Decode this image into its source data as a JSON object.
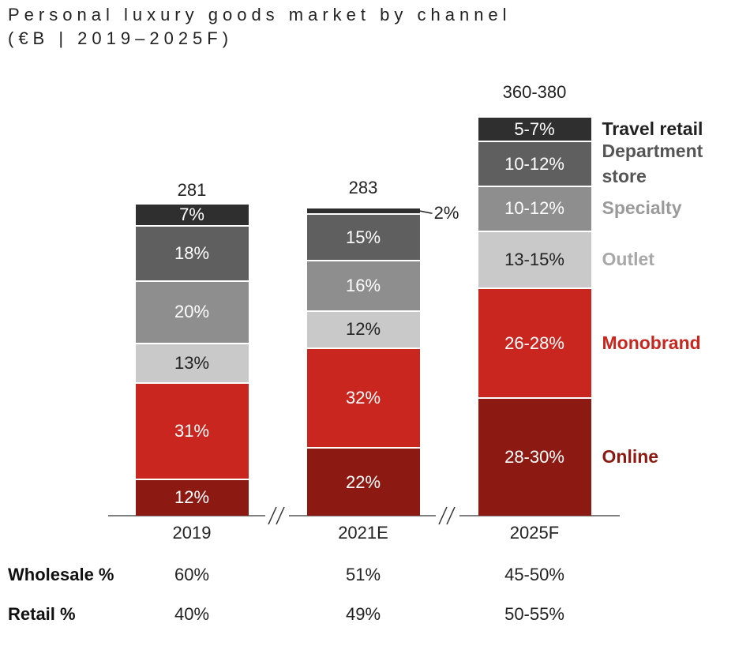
{
  "chart_data": {
    "type": "stacked-bar",
    "title": "Personal luxury goods market by channel",
    "subtitle": "(€B | 2019–2025F)",
    "categories": [
      "2019",
      "2021E",
      "2025F"
    ],
    "totals": {
      "values": [
        281,
        283,
        370
      ],
      "value_labels": [
        "281",
        "283",
        "360-380"
      ]
    },
    "series": [
      {
        "name": "Online",
        "color": "#8c1a13",
        "label_color": "#8c1a13",
        "values": [
          12,
          22,
          29
        ],
        "value_labels": [
          "12%",
          "22%",
          "28-30%"
        ]
      },
      {
        "name": "Monobrand",
        "color": "#c8261e",
        "label_color": "#c8261e",
        "values": [
          31,
          32,
          27
        ],
        "value_labels": [
          "31%",
          "32%",
          "26-28%"
        ]
      },
      {
        "name": "Outlet",
        "color": "#c9c9c9",
        "label_color": "#a8a8a8",
        "values": [
          13,
          12,
          14
        ],
        "value_labels": [
          "13%",
          "12%",
          "13-15%"
        ]
      },
      {
        "name": "Specialty",
        "color": "#8e8e8e",
        "label_color": "#9a9a9a",
        "values": [
          20,
          16,
          11
        ],
        "value_labels": [
          "20%",
          "16%",
          "10-12%"
        ]
      },
      {
        "name": "Department store",
        "color": "#5f5f5f",
        "label_color": "#555555",
        "values": [
          18,
          15,
          11
        ],
        "value_labels": [
          "18%",
          "15%",
          "10-12%"
        ]
      },
      {
        "name": "Travel retail",
        "color": "#2f2f2f",
        "label_color": "#222222",
        "values": [
          7,
          2,
          6
        ],
        "value_labels": [
          "7%",
          "2%",
          "5-7%"
        ]
      }
    ],
    "table": [
      {
        "name": "Wholesale %",
        "values": [
          60,
          51,
          47.5
        ],
        "value_labels": [
          "60%",
          "51%",
          "45-50%"
        ]
      },
      {
        "name": "Retail %",
        "values": [
          40,
          49,
          52.5
        ],
        "value_labels": [
          "40%",
          "49%",
          "50-55%"
        ]
      }
    ]
  }
}
